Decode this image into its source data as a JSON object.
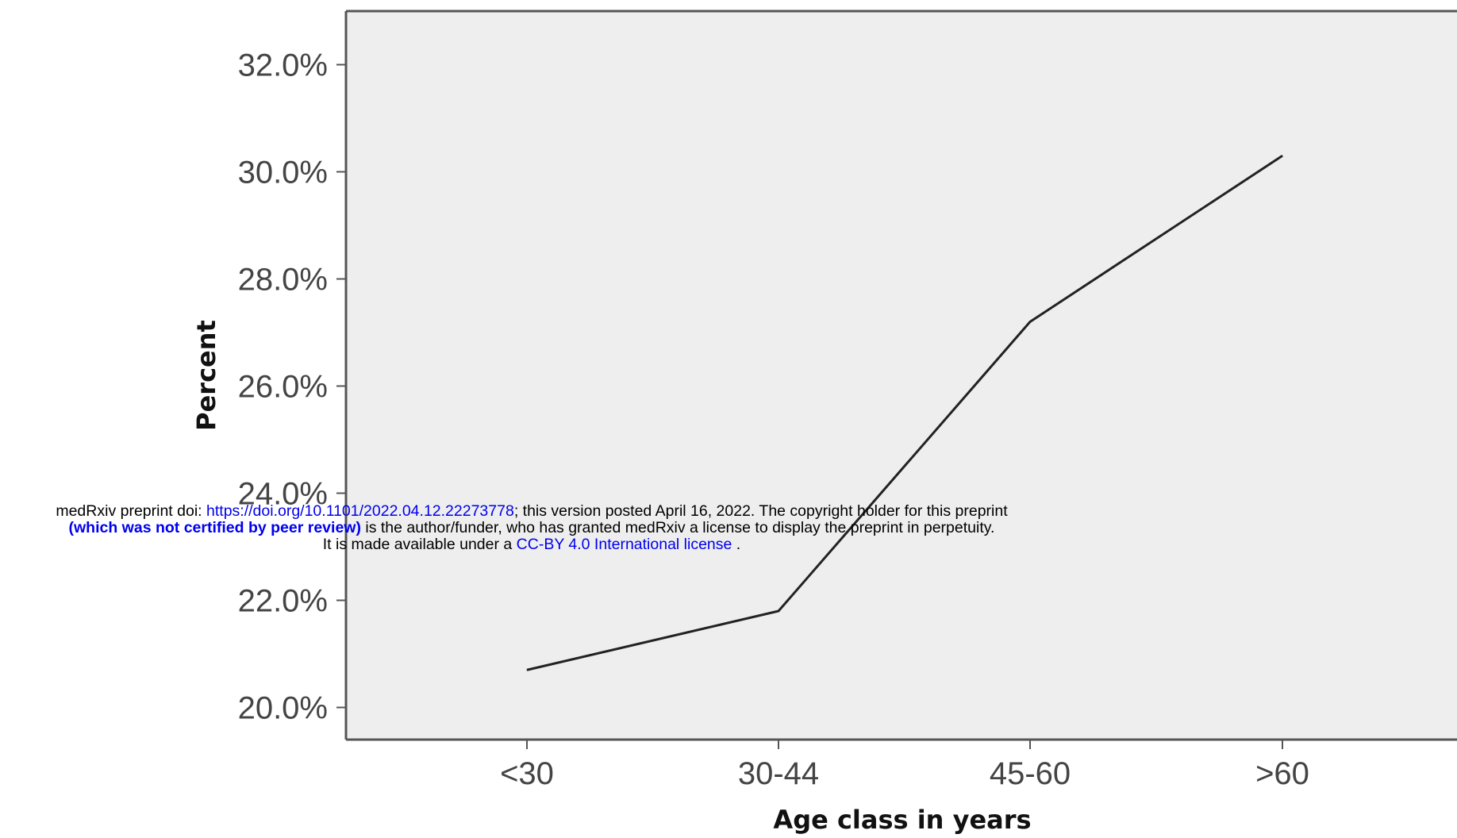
{
  "chart_data": {
    "type": "line",
    "categories": [
      "<30",
      "30-44",
      "45-60",
      ">60"
    ],
    "values": [
      20.7,
      21.8,
      27.2,
      30.3
    ],
    "ylabel": "Percent",
    "xlabel": "Age class in years",
    "ylim": [
      19.4,
      33.0
    ],
    "yticks": [
      20.0,
      22.0,
      24.0,
      26.0,
      28.0,
      30.0,
      32.0
    ],
    "ytick_labels": [
      "20.0%",
      "22.0%",
      "24.0%",
      "26.0%",
      "28.0%",
      "30.0%",
      "32.0%"
    ],
    "grid": false,
    "legend": null,
    "colors": {
      "plot_background": "#eeeeee",
      "line": "#222222"
    }
  },
  "watermark": {
    "line1_prefix": "medRxiv preprint doi: ",
    "doi_link": "https://doi.org/10.1101/2022.04.12.22273778",
    "line1_suffix": "; this version posted April 16, 2022. The copyright holder for this preprint",
    "line2_bold": "(which was not certified by peer review)",
    "line2_rest": " is the author/funder, who has granted medRxiv a license to display the preprint in perpetuity.",
    "line3_prefix": "It is made available under a ",
    "license_link": "CC-BY 4.0 International license",
    "line3_suffix": " ."
  }
}
